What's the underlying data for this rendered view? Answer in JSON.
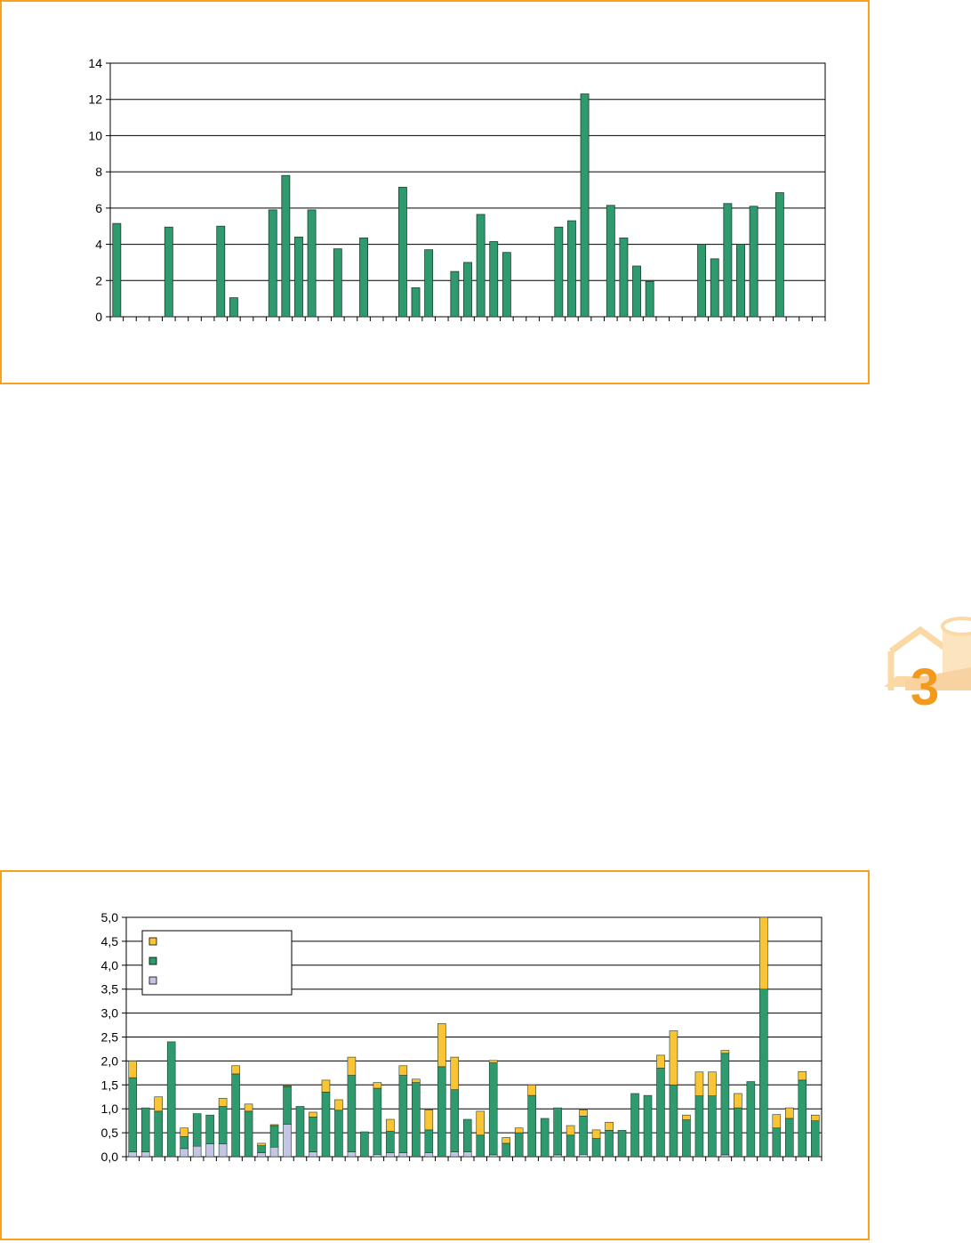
{
  "chapter_mark": {
    "number": "3"
  },
  "chart_data": [
    {
      "type": "bar",
      "ylim": [
        0,
        14
      ],
      "yticks": [
        0,
        2,
        4,
        6,
        8,
        10,
        12,
        14
      ],
      "ytick_labels": [
        "0",
        "2",
        "4",
        "6",
        "8",
        "10",
        "12",
        "14"
      ],
      "grid": true,
      "legend": "none",
      "colors": {
        "bar": "#2e9a6e",
        "edge": "#1c3f30",
        "grid": "#000000"
      },
      "values": [
        5.15,
        null,
        null,
        null,
        4.95,
        null,
        null,
        null,
        5.0,
        1.05,
        null,
        null,
        5.9,
        7.8,
        4.4,
        5.9,
        null,
        3.75,
        null,
        4.35,
        null,
        null,
        7.15,
        1.6,
        3.7,
        null,
        2.5,
        3.0,
        5.65,
        4.15,
        3.55,
        null,
        null,
        null,
        4.95,
        5.3,
        12.3,
        null,
        6.15,
        4.35,
        2.8,
        1.95,
        null,
        null,
        null,
        4.0,
        3.2,
        6.25,
        4.0,
        6.1,
        null,
        6.85,
        null,
        null,
        null
      ]
    },
    {
      "type": "bar",
      "stacked": true,
      "ylim": [
        0,
        5
      ],
      "yticks": [
        0,
        0.5,
        1,
        1.5,
        2,
        2.5,
        3,
        3.5,
        4,
        4.5,
        5
      ],
      "ytick_labels": [
        "0,0",
        "0,5",
        "1,0",
        "1,5",
        "2,0",
        "2,5",
        "3,0",
        "3,5",
        "4,0",
        "4,5",
        "5,0"
      ],
      "grid": true,
      "legend": "top-left",
      "series": [
        {
          "color": "#c4c4e4",
          "values": [
            0.1,
            0.1,
            0,
            0,
            0.17,
            0.22,
            0.27,
            0.27,
            0,
            0,
            0.08,
            0.2,
            0.68,
            0,
            0.1,
            0,
            0,
            0.1,
            0,
            0.05,
            0.08,
            0.08,
            0,
            0.08,
            0,
            0.1,
            0.1,
            0,
            0.04,
            0,
            0,
            0,
            0,
            0.04,
            0,
            0.05,
            0,
            0,
            0,
            0,
            0,
            0,
            0,
            0,
            0,
            0,
            0.04,
            0,
            0,
            0,
            0,
            0,
            0,
            0
          ]
        },
        {
          "color": "#2e9a6e",
          "values": [
            1.55,
            0.92,
            0.95,
            2.4,
            0.25,
            0.68,
            0.6,
            0.78,
            1.73,
            0.95,
            0.15,
            0.45,
            0.78,
            1.05,
            0.73,
            1.35,
            0.97,
            1.6,
            0.52,
            1.38,
            0.45,
            1.62,
            1.55,
            0.48,
            1.88,
            1.3,
            0.68,
            0.45,
            1.92,
            0.28,
            0.5,
            1.28,
            0.8,
            0.98,
            0.45,
            0.8,
            0.38,
            0.55,
            0.55,
            1.32,
            1.28,
            1.85,
            1.5,
            0.77,
            1.27,
            1.27,
            2.12,
            1.02,
            1.57,
            3.5,
            0.6,
            0.8,
            1.6,
            0.75
          ]
        },
        {
          "color": "#fbc434",
          "values": [
            0.35,
            0,
            0.3,
            0,
            0.18,
            0,
            0,
            0.17,
            0.17,
            0.15,
            0.05,
            0.02,
            0.02,
            0,
            0.1,
            0.25,
            0.22,
            0.38,
            0,
            0.12,
            0.25,
            0.2,
            0.07,
            0.42,
            0.9,
            0.68,
            0,
            0.5,
            0.05,
            0.12,
            0.1,
            0.22,
            0,
            0,
            0.2,
            0.13,
            0.18,
            0.17,
            0,
            0,
            0,
            0.27,
            1.13,
            0.1,
            0.5,
            0.5,
            0.06,
            0.3,
            0,
            1.5,
            0.28,
            0.22,
            0.18,
            0.12
          ]
        }
      ]
    }
  ]
}
